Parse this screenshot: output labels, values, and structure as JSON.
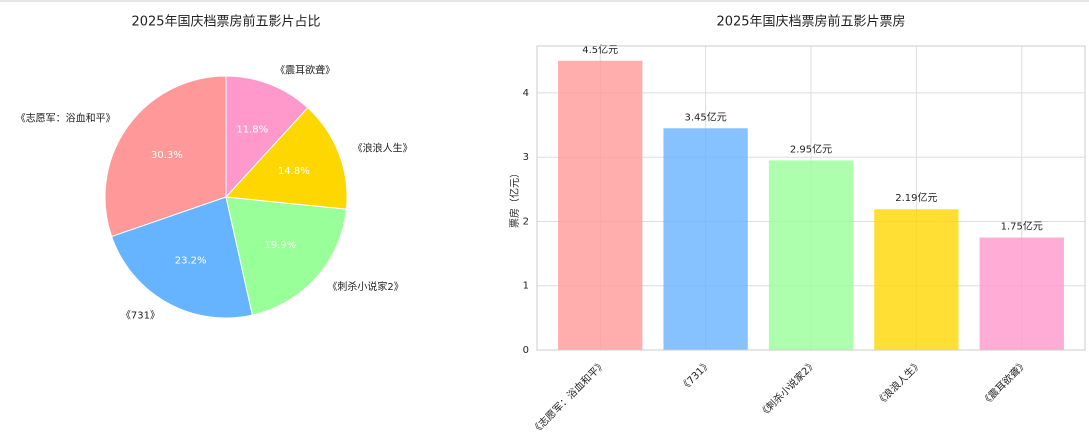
{
  "chart_data": [
    {
      "type": "pie",
      "title": "2025年国庆档票房前五影片占比",
      "categories": [
        "《志愿军：浴血和平》",
        "《731》",
        "《刺杀小说家2》",
        "《浪浪人生》",
        "《震耳欲聋》"
      ],
      "values": [
        30.3,
        23.2,
        19.9,
        14.8,
        11.8
      ],
      "value_labels": [
        "30.3%",
        "23.2%",
        "19.9%",
        "14.8%",
        "11.8%"
      ],
      "colors": [
        "#ff9999",
        "#66b3ff",
        "#99ff99",
        "#ffd700",
        "#ff99cc"
      ]
    },
    {
      "type": "bar",
      "title": "2025年国庆档票房前五影片票房",
      "y_label": "票房（亿元）",
      "categories": [
        "《志愿军：浴血和平》",
        "《731》",
        "《刺杀小说家2》",
        "《浪浪人生》",
        "《震耳欲聋》"
      ],
      "values": [
        4.5,
        3.45,
        2.95,
        2.19,
        1.75
      ],
      "value_labels": [
        "4.5亿元",
        "3.45亿元",
        "2.95亿元",
        "2.19亿元",
        "1.75亿元"
      ],
      "colors": [
        "#ff9999",
        "#66b3ff",
        "#99ff99",
        "#ffd700",
        "#ff99cc"
      ],
      "ylim": [
        0,
        4.73
      ],
      "yticks": [
        0,
        1,
        2,
        3,
        4
      ],
      "grid": true
    }
  ]
}
